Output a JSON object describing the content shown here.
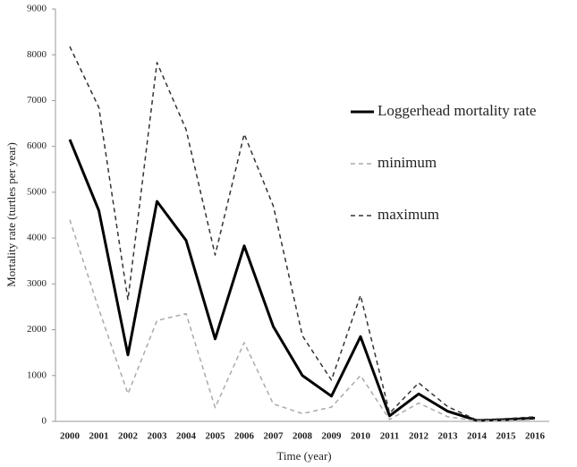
{
  "chart_data": {
    "type": "line",
    "x_label": "Time (year)",
    "y_label": "Mortality rate (turtles per year)",
    "categories": [
      "2000",
      "2001",
      "2002",
      "2003",
      "2004",
      "2005",
      "2006",
      "2007",
      "2008",
      "2009",
      "2010",
      "2011",
      "2012",
      "2013",
      "2014",
      "2015",
      "2016"
    ],
    "series": [
      {
        "name": "Loggerhead mortality rate",
        "color": "#000000",
        "dash": "solid",
        "values": [
          6150,
          4600,
          1450,
          4800,
          3950,
          1800,
          3830,
          2070,
          1000,
          550,
          1850,
          120,
          600,
          220,
          20,
          40,
          70
        ]
      },
      {
        "name": "minimum",
        "color": "#aaaaaa",
        "dash": "dashed",
        "values": [
          4400,
          2450,
          600,
          2200,
          2350,
          300,
          1720,
          380,
          170,
          310,
          1000,
          40,
          400,
          100,
          10,
          20,
          40
        ]
      },
      {
        "name": "maximum",
        "color": "#333333",
        "dash": "dashed",
        "values": [
          8180,
          6850,
          2650,
          7830,
          6370,
          3630,
          6270,
          4700,
          1870,
          900,
          2750,
          180,
          840,
          320,
          30,
          60,
          100
        ]
      }
    ],
    "ylim": [
      0,
      9000
    ],
    "yticks": [
      0,
      1000,
      2000,
      3000,
      4000,
      5000,
      6000,
      7000,
      8000,
      9000
    ],
    "grid": false,
    "legend": "right"
  }
}
